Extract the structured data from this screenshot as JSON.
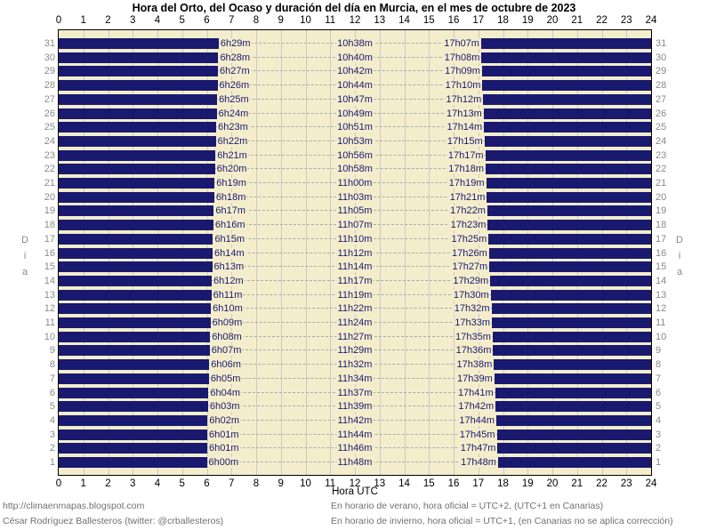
{
  "title": "Hora del Orto, del Ocaso y duración del día en Murcia, en el mes de octubre de 2023",
  "chart_data": {
    "type": "bar",
    "subtype": "horizontal-day-night-bands",
    "title": "Hora del Orto, del Ocaso y duración del día en Murcia, en el mes de octubre de 2023",
    "xlabel": "Hora UTC",
    "ylabel": "Día",
    "xlim": [
      0,
      24
    ],
    "x_ticks": [
      0,
      1,
      2,
      3,
      4,
      5,
      6,
      7,
      8,
      9,
      10,
      11,
      12,
      13,
      14,
      15,
      16,
      17,
      18,
      19,
      20,
      21,
      22,
      23,
      24
    ],
    "grid": "vertical-hour-lines",
    "night_color": "#191970",
    "day_color": "#F4EDCC",
    "rows": [
      {
        "day": 31,
        "orto": "6h29m",
        "duracion": "10h38m",
        "ocaso": "17h07m"
      },
      {
        "day": 30,
        "orto": "6h28m",
        "duracion": "10h40m",
        "ocaso": "17h08m"
      },
      {
        "day": 29,
        "orto": "6h27m",
        "duracion": "10h42m",
        "ocaso": "17h09m"
      },
      {
        "day": 28,
        "orto": "6h26m",
        "duracion": "10h44m",
        "ocaso": "17h10m"
      },
      {
        "day": 27,
        "orto": "6h25m",
        "duracion": "10h47m",
        "ocaso": "17h12m"
      },
      {
        "day": 26,
        "orto": "6h24m",
        "duracion": "10h49m",
        "ocaso": "17h13m"
      },
      {
        "day": 25,
        "orto": "6h23m",
        "duracion": "10h51m",
        "ocaso": "17h14m"
      },
      {
        "day": 24,
        "orto": "6h22m",
        "duracion": "10h53m",
        "ocaso": "17h15m"
      },
      {
        "day": 23,
        "orto": "6h21m",
        "duracion": "10h56m",
        "ocaso": "17h17m"
      },
      {
        "day": 22,
        "orto": "6h20m",
        "duracion": "10h58m",
        "ocaso": "17h18m"
      },
      {
        "day": 21,
        "orto": "6h19m",
        "duracion": "11h00m",
        "ocaso": "17h19m"
      },
      {
        "day": 20,
        "orto": "6h18m",
        "duracion": "11h03m",
        "ocaso": "17h21m"
      },
      {
        "day": 19,
        "orto": "6h17m",
        "duracion": "11h05m",
        "ocaso": "17h22m"
      },
      {
        "day": 18,
        "orto": "6h16m",
        "duracion": "11h07m",
        "ocaso": "17h23m"
      },
      {
        "day": 17,
        "orto": "6h15m",
        "duracion": "11h10m",
        "ocaso": "17h25m"
      },
      {
        "day": 16,
        "orto": "6h14m",
        "duracion": "11h12m",
        "ocaso": "17h26m"
      },
      {
        "day": 15,
        "orto": "6h13m",
        "duracion": "11h14m",
        "ocaso": "17h27m"
      },
      {
        "day": 14,
        "orto": "6h12m",
        "duracion": "11h17m",
        "ocaso": "17h29m"
      },
      {
        "day": 13,
        "orto": "6h11m",
        "duracion": "11h19m",
        "ocaso": "17h30m"
      },
      {
        "day": 12,
        "orto": "6h10m",
        "duracion": "11h22m",
        "ocaso": "17h32m"
      },
      {
        "day": 11,
        "orto": "6h09m",
        "duracion": "11h24m",
        "ocaso": "17h33m"
      },
      {
        "day": 10,
        "orto": "6h08m",
        "duracion": "11h27m",
        "ocaso": "17h35m"
      },
      {
        "day": 9,
        "orto": "6h07m",
        "duracion": "11h29m",
        "ocaso": "17h36m"
      },
      {
        "day": 8,
        "orto": "6h06m",
        "duracion": "11h32m",
        "ocaso": "17h38m"
      },
      {
        "day": 7,
        "orto": "6h05m",
        "duracion": "11h34m",
        "ocaso": "17h39m"
      },
      {
        "day": 6,
        "orto": "6h04m",
        "duracion": "11h37m",
        "ocaso": "17h41m"
      },
      {
        "day": 5,
        "orto": "6h03m",
        "duracion": "11h39m",
        "ocaso": "17h42m"
      },
      {
        "day": 4,
        "orto": "6h02m",
        "duracion": "11h42m",
        "ocaso": "17h44m"
      },
      {
        "day": 3,
        "orto": "6h01m",
        "duracion": "11h44m",
        "ocaso": "17h45m"
      },
      {
        "day": 2,
        "orto": "6h01m",
        "duracion": "11h46m",
        "ocaso": "17h47m"
      },
      {
        "day": 1,
        "orto": "6h00m",
        "duracion": "11h48m",
        "ocaso": "17h48m"
      }
    ]
  },
  "footer": {
    "left": [
      "http://climaenmapas.blogspot.com",
      "César Rodríguez Ballesteros (twitter: @crballesteros)"
    ],
    "right": [
      "En horario de verano, hora oficial = UTC+2, (UTC+1 en Canarias)",
      "En horario de invierno, hora oficial = UTC+1, (en Canarias no se aplica corrección)"
    ]
  },
  "colors": {
    "night": "#191970",
    "day_background": "#F4EDCC",
    "gridline": "#C9C9C9",
    "dashed_guide": "#ACACAC",
    "axis_text": "#000000",
    "day_number_text": "#8A8A8A",
    "footer_text": "#707070"
  }
}
